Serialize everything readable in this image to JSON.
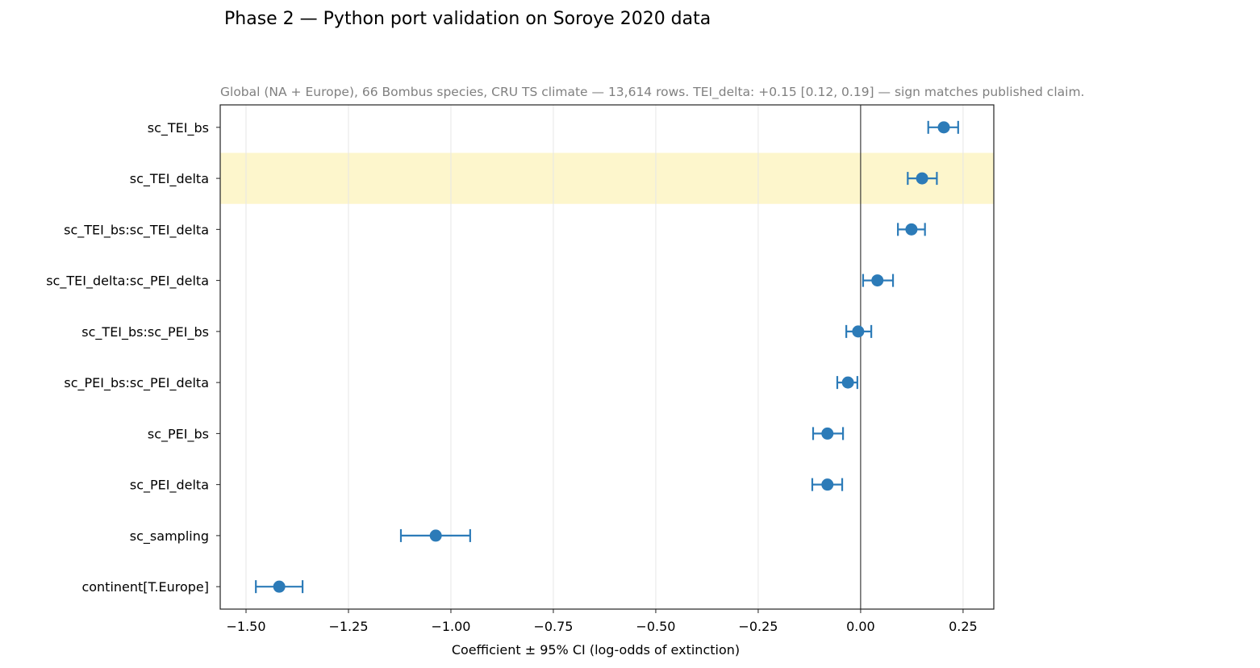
{
  "chart_data": {
    "type": "scatter",
    "subtype": "coefficient-plot-with-error-bars",
    "title": "Phase 2 — Python port validation on Soroye 2020 data",
    "subtitle": "Global (NA + Europe), 66 Bombus species, CRU TS climate — 13,614 rows. TEI_delta: +0.15 [0.12, 0.19] — sign matches published claim.",
    "xlabel": "Coefficient ± 95% CI  (log-odds of extinction)",
    "ylabel": "",
    "xlim": [
      -1.563,
      0.325
    ],
    "xticks": [
      -1.5,
      -1.25,
      -1.0,
      -0.75,
      -0.5,
      -0.25,
      0.0,
      0.25
    ],
    "xtick_labels": [
      "−1.50",
      "−1.25",
      "−1.00",
      "−0.75",
      "−0.50",
      "−0.25",
      "0.00",
      "0.25"
    ],
    "grid": "vertical",
    "reference_line_x": 0,
    "highlighted_term": "sc_TEI_delta",
    "colors": {
      "point": "#2c7bb8",
      "highlight": "#fdf6cc",
      "grid": "#e6e6e6",
      "subtitle": "#808080"
    },
    "terms": [
      {
        "label": "sc_TEI_bs",
        "estimate": 0.203,
        "lower": 0.165,
        "upper": 0.238
      },
      {
        "label": "sc_TEI_delta",
        "estimate": 0.15,
        "lower": 0.115,
        "upper": 0.186
      },
      {
        "label": "sc_TEI_bs:sc_TEI_delta",
        "estimate": 0.124,
        "lower": 0.091,
        "upper": 0.157
      },
      {
        "label": "sc_TEI_delta:sc_PEI_delta",
        "estimate": 0.041,
        "lower": 0.006,
        "upper": 0.079
      },
      {
        "label": "sc_TEI_bs:sc_PEI_bs",
        "estimate": -0.006,
        "lower": -0.035,
        "upper": 0.026
      },
      {
        "label": "sc_PEI_bs:sc_PEI_delta",
        "estimate": -0.031,
        "lower": -0.057,
        "upper": -0.008
      },
      {
        "label": "sc_PEI_bs",
        "estimate": -0.081,
        "lower": -0.116,
        "upper": -0.043
      },
      {
        "label": "sc_PEI_delta",
        "estimate": -0.081,
        "lower": -0.118,
        "upper": -0.045
      },
      {
        "label": "sc_sampling",
        "estimate": -1.037,
        "lower": -1.122,
        "upper": -0.953
      },
      {
        "label": "continent[T.Europe]",
        "estimate": -1.419,
        "lower": -1.476,
        "upper": -1.362
      }
    ]
  }
}
